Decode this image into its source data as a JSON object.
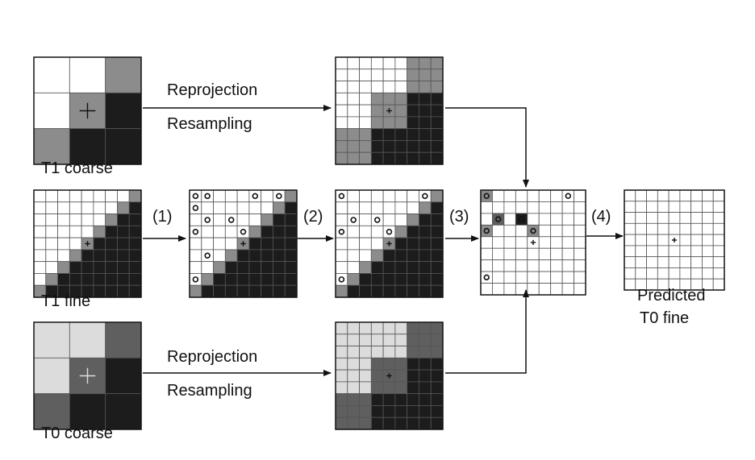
{
  "labels": {
    "t1_coarse": "T1 coarse",
    "t1_fine": "T1 fine",
    "t0_coarse": "T0 coarse",
    "predicted_line1": "Predicted",
    "predicted_line2": "T0 fine",
    "reprojection_top": "Reprojection",
    "resampling_top": "Resampling",
    "reprojection_bottom": "Reprojection",
    "resampling_bottom": "Resampling",
    "step1": "(1)",
    "step2": "(2)",
    "step3": "(3)",
    "step4": "(4)"
  },
  "colors": {
    "white": "#ffffff",
    "light_gray": "#dcdcdc",
    "mid_gray": "#8c8c8c",
    "dark_gray": "#5f5f5f",
    "black": "#1c1c1c",
    "line": "#111111"
  },
  "grids": {
    "t1_coarse": [
      [
        "W",
        "W",
        "G"
      ],
      [
        "W",
        "G",
        "K"
      ],
      [
        "G",
        "K",
        "K"
      ]
    ],
    "t0_coarse": [
      [
        "L",
        "L",
        "D"
      ],
      [
        "L",
        "D",
        "K"
      ],
      [
        "D",
        "K",
        "K"
      ]
    ]
  }
}
